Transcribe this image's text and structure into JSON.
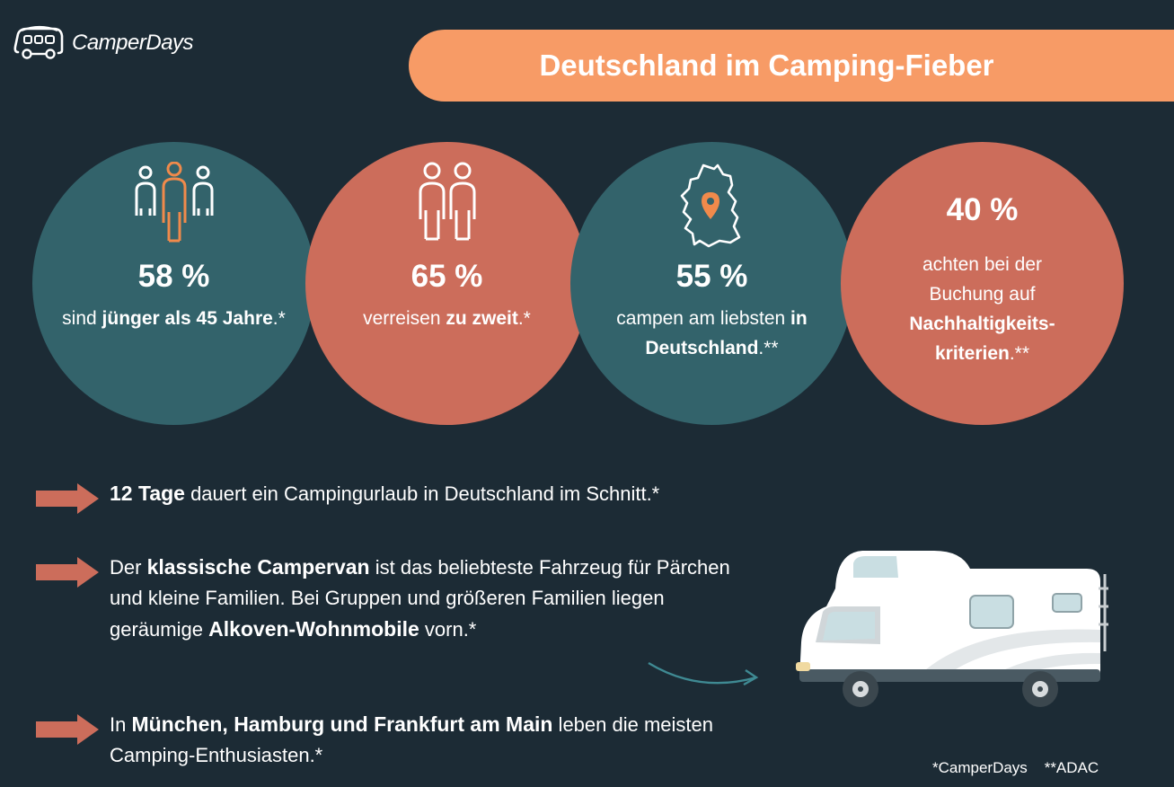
{
  "brand": {
    "name": "CamperDays",
    "logo_icon": "camper-van-logo-icon"
  },
  "header": {
    "title": "Deutschland im Camping-Fieber"
  },
  "colors": {
    "background": "#1c2b35",
    "teal": "#33636b",
    "coral": "#cc6d5b",
    "orange": "#f79b66",
    "white": "#ffffff"
  },
  "stats": [
    {
      "percent": "58 %",
      "value": 58,
      "icon": "three-people-icon",
      "desc_pre": "sind ",
      "desc_bold": "jünger als 45 Jahre",
      "desc_post": ".*"
    },
    {
      "percent": "65 %",
      "value": 65,
      "icon": "two-people-icon",
      "desc_pre": "verreisen ",
      "desc_bold": "zu zweit",
      "desc_post": ".*"
    },
    {
      "percent": "55 %",
      "value": 55,
      "icon": "germany-map-pin-icon",
      "desc_pre": "campen am liebsten ",
      "desc_bold": "in Deutschland",
      "desc_post": ".**"
    },
    {
      "percent": "40 %",
      "value": 40,
      "icon": "",
      "desc_pre": "achten bei der Buchung auf ",
      "desc_bold": "Nachhaltigkeits-kriterien",
      "desc_post": ".**"
    }
  ],
  "facts": [
    {
      "bold1": "12 Tage",
      "text1": " dauert ein Campingurlaub in Deutschland im Schnitt.*"
    },
    {
      "text0": "Der ",
      "bold1": "klassische Campervan",
      "text1": " ist das beliebteste Fahrzeug für Pärchen und kleine Familien. Bei Gruppen und größeren Familien liegen geräumige ",
      "bold2": "Alkoven-Wohnmobile",
      "text2": " vorn.*"
    },
    {
      "text0": "In ",
      "bold1": "München, Hamburg und Frankfurt am Main",
      "text1": " leben die meisten Camping-Enthusiasten.*"
    }
  ],
  "footnote": "*CamperDays    **ADAC",
  "illustration": {
    "icon": "alcove-motorhome-illustration",
    "arrow_icon": "curved-arrow-icon"
  }
}
